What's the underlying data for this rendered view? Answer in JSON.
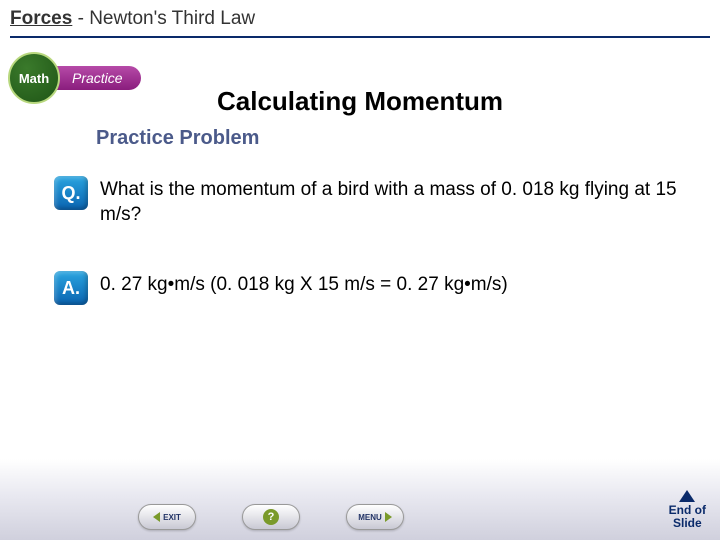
{
  "header": {
    "chapter": "Forces",
    "section": "- Newton's Third Law"
  },
  "badge": {
    "math_label": "Math",
    "practice_label": "Practice"
  },
  "title": "Calculating Momentum",
  "subtitle": "Practice Problem",
  "question": {
    "badge": "Q.",
    "text": "What is the momentum of a bird with a mass of 0. 018 kg flying at 15 m/s?"
  },
  "answer": {
    "badge": "A.",
    "text": "0. 27 kg•m/s (0. 018 kg X 15 m/s = 0. 27 kg•m/s)"
  },
  "nav": {
    "exit": "EXIT",
    "menu": "MENU"
  },
  "end_slide": {
    "line1": "End of",
    "line2": "Slide"
  },
  "colors": {
    "rule": "#0a2a6a",
    "subtitle": "#4b5a8a",
    "badge_green": "#1f5516",
    "pill_purple": "#8a1d7d",
    "qa_blue": "#0a63b0"
  }
}
